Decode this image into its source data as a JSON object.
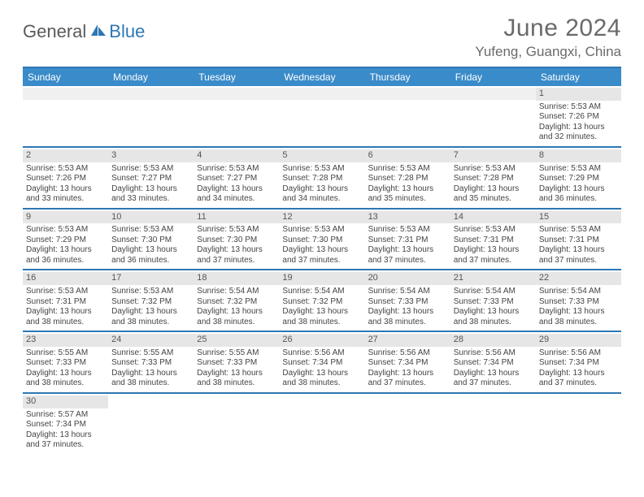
{
  "logo": {
    "general": "General",
    "blue": "Blue"
  },
  "title": "June 2024",
  "location": "Yufeng, Guangxi, China",
  "colors": {
    "header_bar": "#3a8bc9",
    "border": "#2d77b3",
    "daynum_bg": "#e6e6e6",
    "text": "#444444",
    "title_color": "#6a6a6a"
  },
  "days_of_week": [
    "Sunday",
    "Monday",
    "Tuesday",
    "Wednesday",
    "Thursday",
    "Friday",
    "Saturday"
  ],
  "weeks": [
    [
      {
        "n": "",
        "sr": "",
        "ss": "",
        "dl": ""
      },
      {
        "n": "",
        "sr": "",
        "ss": "",
        "dl": ""
      },
      {
        "n": "",
        "sr": "",
        "ss": "",
        "dl": ""
      },
      {
        "n": "",
        "sr": "",
        "ss": "",
        "dl": ""
      },
      {
        "n": "",
        "sr": "",
        "ss": "",
        "dl": ""
      },
      {
        "n": "",
        "sr": "",
        "ss": "",
        "dl": ""
      },
      {
        "n": "1",
        "sr": "Sunrise: 5:53 AM",
        "ss": "Sunset: 7:26 PM",
        "dl": "Daylight: 13 hours and 32 minutes."
      }
    ],
    [
      {
        "n": "2",
        "sr": "Sunrise: 5:53 AM",
        "ss": "Sunset: 7:26 PM",
        "dl": "Daylight: 13 hours and 33 minutes."
      },
      {
        "n": "3",
        "sr": "Sunrise: 5:53 AM",
        "ss": "Sunset: 7:27 PM",
        "dl": "Daylight: 13 hours and 33 minutes."
      },
      {
        "n": "4",
        "sr": "Sunrise: 5:53 AM",
        "ss": "Sunset: 7:27 PM",
        "dl": "Daylight: 13 hours and 34 minutes."
      },
      {
        "n": "5",
        "sr": "Sunrise: 5:53 AM",
        "ss": "Sunset: 7:28 PM",
        "dl": "Daylight: 13 hours and 34 minutes."
      },
      {
        "n": "6",
        "sr": "Sunrise: 5:53 AM",
        "ss": "Sunset: 7:28 PM",
        "dl": "Daylight: 13 hours and 35 minutes."
      },
      {
        "n": "7",
        "sr": "Sunrise: 5:53 AM",
        "ss": "Sunset: 7:28 PM",
        "dl": "Daylight: 13 hours and 35 minutes."
      },
      {
        "n": "8",
        "sr": "Sunrise: 5:53 AM",
        "ss": "Sunset: 7:29 PM",
        "dl": "Daylight: 13 hours and 36 minutes."
      }
    ],
    [
      {
        "n": "9",
        "sr": "Sunrise: 5:53 AM",
        "ss": "Sunset: 7:29 PM",
        "dl": "Daylight: 13 hours and 36 minutes."
      },
      {
        "n": "10",
        "sr": "Sunrise: 5:53 AM",
        "ss": "Sunset: 7:30 PM",
        "dl": "Daylight: 13 hours and 36 minutes."
      },
      {
        "n": "11",
        "sr": "Sunrise: 5:53 AM",
        "ss": "Sunset: 7:30 PM",
        "dl": "Daylight: 13 hours and 37 minutes."
      },
      {
        "n": "12",
        "sr": "Sunrise: 5:53 AM",
        "ss": "Sunset: 7:30 PM",
        "dl": "Daylight: 13 hours and 37 minutes."
      },
      {
        "n": "13",
        "sr": "Sunrise: 5:53 AM",
        "ss": "Sunset: 7:31 PM",
        "dl": "Daylight: 13 hours and 37 minutes."
      },
      {
        "n": "14",
        "sr": "Sunrise: 5:53 AM",
        "ss": "Sunset: 7:31 PM",
        "dl": "Daylight: 13 hours and 37 minutes."
      },
      {
        "n": "15",
        "sr": "Sunrise: 5:53 AM",
        "ss": "Sunset: 7:31 PM",
        "dl": "Daylight: 13 hours and 37 minutes."
      }
    ],
    [
      {
        "n": "16",
        "sr": "Sunrise: 5:53 AM",
        "ss": "Sunset: 7:31 PM",
        "dl": "Daylight: 13 hours and 38 minutes."
      },
      {
        "n": "17",
        "sr": "Sunrise: 5:53 AM",
        "ss": "Sunset: 7:32 PM",
        "dl": "Daylight: 13 hours and 38 minutes."
      },
      {
        "n": "18",
        "sr": "Sunrise: 5:54 AM",
        "ss": "Sunset: 7:32 PM",
        "dl": "Daylight: 13 hours and 38 minutes."
      },
      {
        "n": "19",
        "sr": "Sunrise: 5:54 AM",
        "ss": "Sunset: 7:32 PM",
        "dl": "Daylight: 13 hours and 38 minutes."
      },
      {
        "n": "20",
        "sr": "Sunrise: 5:54 AM",
        "ss": "Sunset: 7:33 PM",
        "dl": "Daylight: 13 hours and 38 minutes."
      },
      {
        "n": "21",
        "sr": "Sunrise: 5:54 AM",
        "ss": "Sunset: 7:33 PM",
        "dl": "Daylight: 13 hours and 38 minutes."
      },
      {
        "n": "22",
        "sr": "Sunrise: 5:54 AM",
        "ss": "Sunset: 7:33 PM",
        "dl": "Daylight: 13 hours and 38 minutes."
      }
    ],
    [
      {
        "n": "23",
        "sr": "Sunrise: 5:55 AM",
        "ss": "Sunset: 7:33 PM",
        "dl": "Daylight: 13 hours and 38 minutes."
      },
      {
        "n": "24",
        "sr": "Sunrise: 5:55 AM",
        "ss": "Sunset: 7:33 PM",
        "dl": "Daylight: 13 hours and 38 minutes."
      },
      {
        "n": "25",
        "sr": "Sunrise: 5:55 AM",
        "ss": "Sunset: 7:33 PM",
        "dl": "Daylight: 13 hours and 38 minutes."
      },
      {
        "n": "26",
        "sr": "Sunrise: 5:56 AM",
        "ss": "Sunset: 7:34 PM",
        "dl": "Daylight: 13 hours and 38 minutes."
      },
      {
        "n": "27",
        "sr": "Sunrise: 5:56 AM",
        "ss": "Sunset: 7:34 PM",
        "dl": "Daylight: 13 hours and 37 minutes."
      },
      {
        "n": "28",
        "sr": "Sunrise: 5:56 AM",
        "ss": "Sunset: 7:34 PM",
        "dl": "Daylight: 13 hours and 37 minutes."
      },
      {
        "n": "29",
        "sr": "Sunrise: 5:56 AM",
        "ss": "Sunset: 7:34 PM",
        "dl": "Daylight: 13 hours and 37 minutes."
      }
    ],
    [
      {
        "n": "30",
        "sr": "Sunrise: 5:57 AM",
        "ss": "Sunset: 7:34 PM",
        "dl": "Daylight: 13 hours and 37 minutes."
      },
      {
        "n": "",
        "sr": "",
        "ss": "",
        "dl": ""
      },
      {
        "n": "",
        "sr": "",
        "ss": "",
        "dl": ""
      },
      {
        "n": "",
        "sr": "",
        "ss": "",
        "dl": ""
      },
      {
        "n": "",
        "sr": "",
        "ss": "",
        "dl": ""
      },
      {
        "n": "",
        "sr": "",
        "ss": "",
        "dl": ""
      },
      {
        "n": "",
        "sr": "",
        "ss": "",
        "dl": ""
      }
    ]
  ]
}
